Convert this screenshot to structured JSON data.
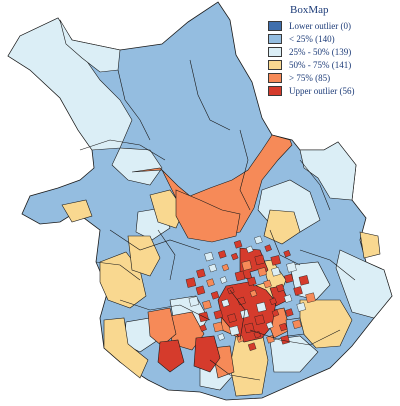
{
  "legend": {
    "title": "BoxMap",
    "items": [
      {
        "label": "Lower outlier (0)",
        "color": "#3f6fad"
      },
      {
        "label": "< 25% (140)",
        "color": "#94bde0"
      },
      {
        "label": "25% - 50% (139)",
        "color": "#dbeef6"
      },
      {
        "label": "50% - 75% (141)",
        "color": "#f9d890"
      },
      {
        "label": "> 75% (85)",
        "color": "#f68a58"
      },
      {
        "label": "Upper outlier (56)",
        "color": "#d53b2c"
      }
    ]
  },
  "map": {
    "border_color": "#1a1a1a",
    "base_color": "#94bde0"
  }
}
